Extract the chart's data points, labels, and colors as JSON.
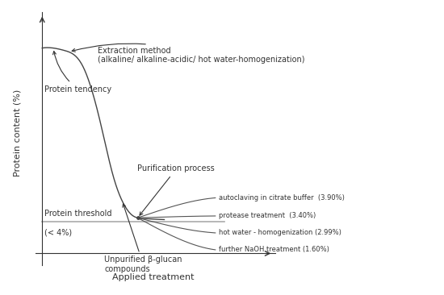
{
  "title": "",
  "xlabel": "Applied treatment",
  "ylabel": "Protein content (%)",
  "background_color": "#ffffff",
  "main_curve_color": "#444444",
  "threshold_line_color": "#aaaaaa",
  "fan_line_color": "#555555",
  "annotations": {
    "extraction_method": "Extraction method\n(alkaline/ alkaline-acidic/ hot water-homogenization)",
    "protein_tendency": "Protein tendency",
    "protein_threshold": "Protein threshold",
    "threshold_value": "(< 4%)",
    "unpurified": "Unpurified β-glucan\ncompounds",
    "purification": "Purification process",
    "fan_lines": [
      "autoclaving in citrate buffer  (3.90%)",
      "protease treatment  (3.40%)",
      "hot water - homogenization (2.99%)",
      "further NaOH treatment (1.60%)"
    ]
  }
}
